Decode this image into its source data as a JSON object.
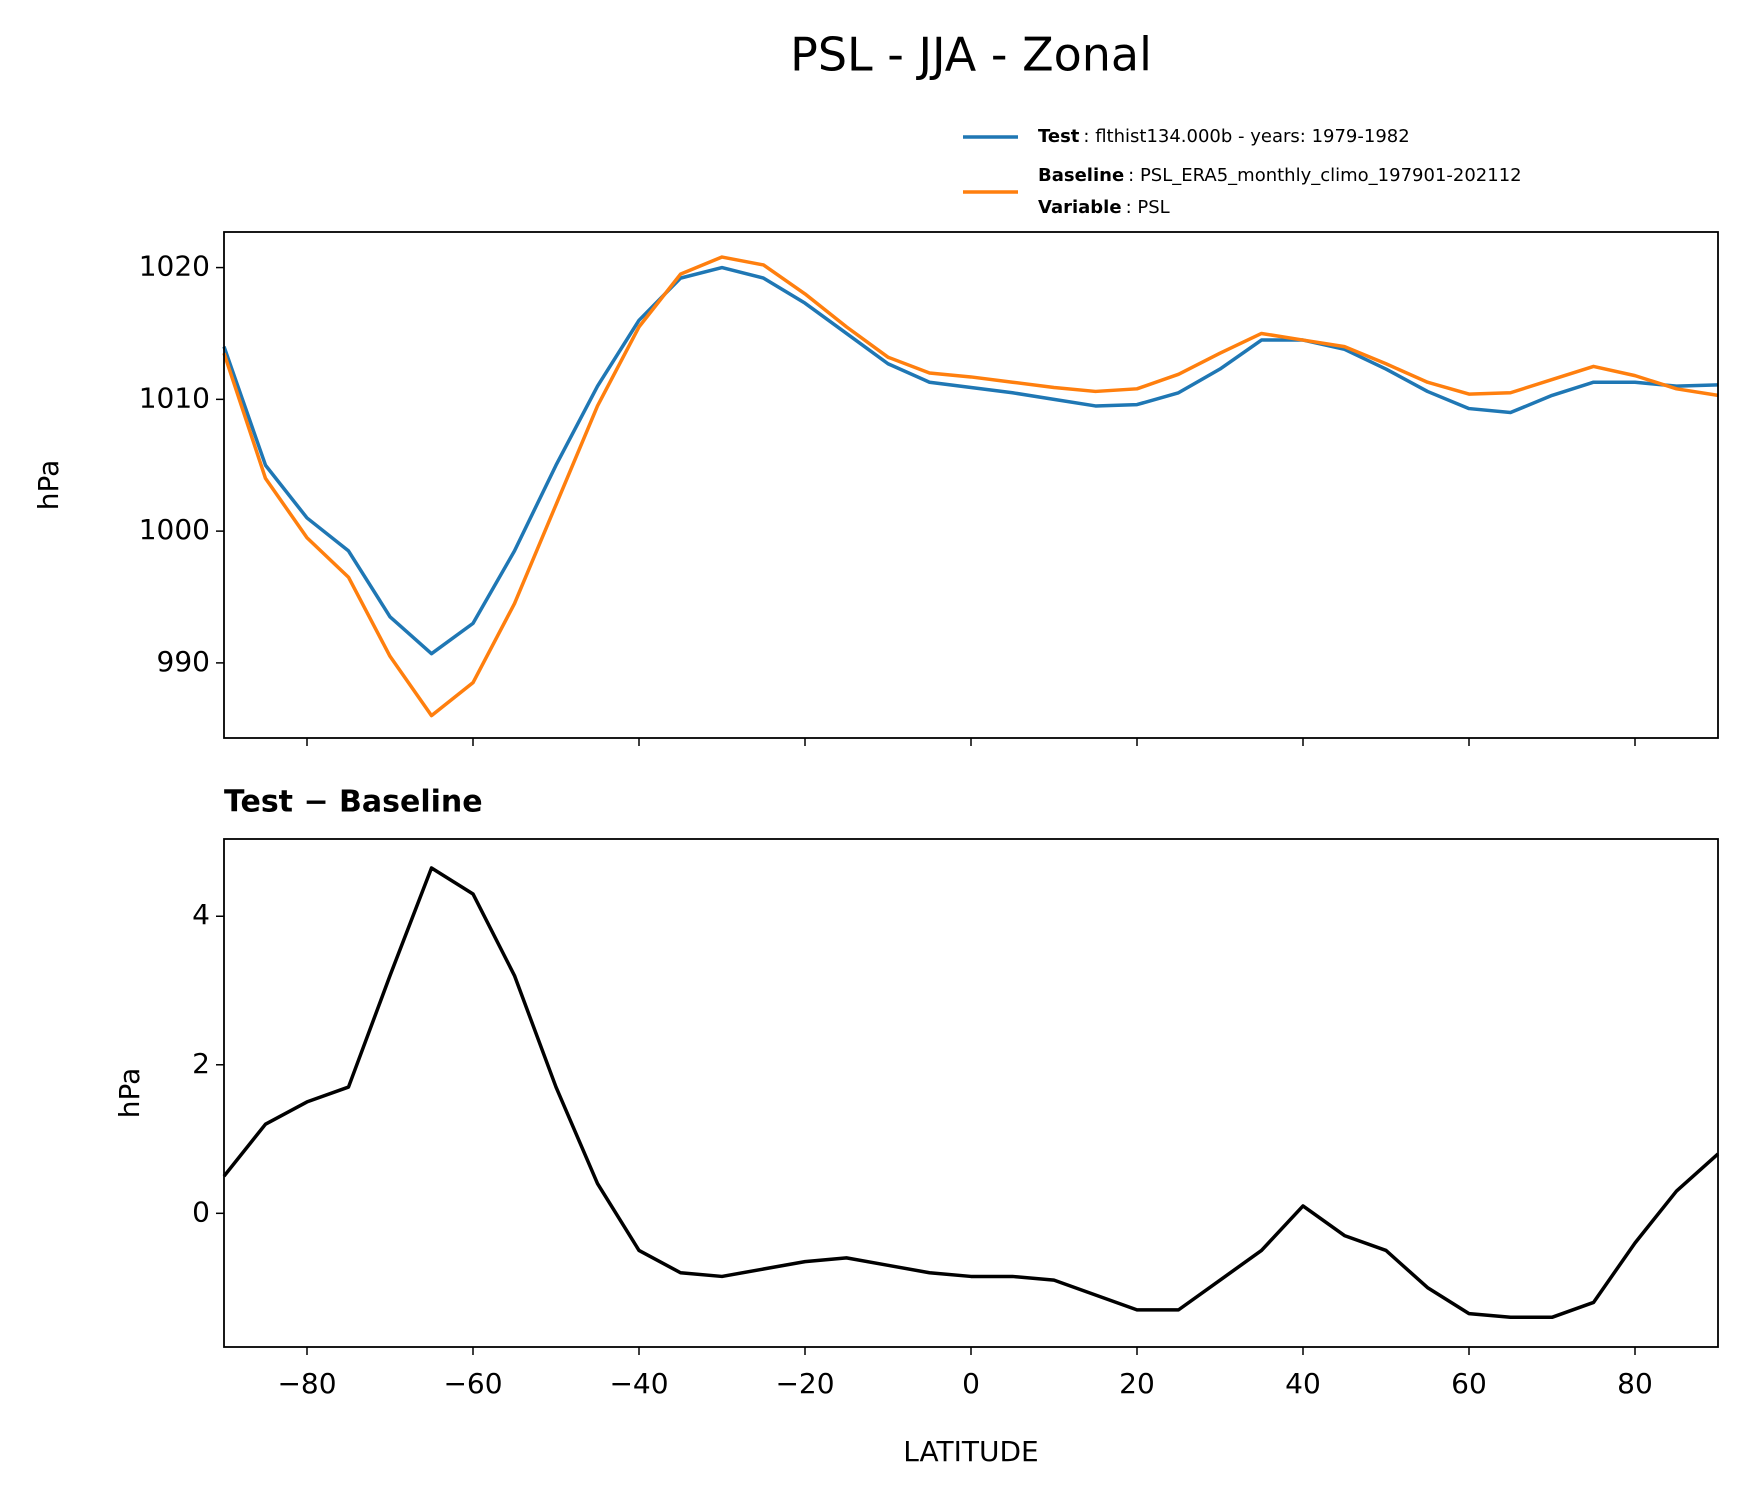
{
  "chart_data": [
    {
      "type": "line",
      "title": "PSL - JJA - Zonal",
      "ylabel": "hPa",
      "x": [
        -90,
        -85,
        -80,
        -75,
        -70,
        -65,
        -60,
        -55,
        -50,
        -45,
        -40,
        -35,
        -30,
        -25,
        -20,
        -15,
        -10,
        -5,
        0,
        5,
        10,
        15,
        20,
        25,
        30,
        35,
        40,
        45,
        50,
        55,
        60,
        65,
        70,
        75,
        80,
        85,
        90
      ],
      "series": [
        {
          "name": "Test",
          "description": ": flthist134.000b - years: 1979-1982",
          "color": "#1f77b4",
          "values": [
            1014,
            1005,
            1001,
            998.5,
            993.5,
            990.7,
            993,
            998.5,
            1005,
            1011,
            1016,
            1019.2,
            1020,
            1019.2,
            1017.3,
            1015,
            1012.7,
            1011.3,
            1010.9,
            1010.5,
            1010,
            1009.5,
            1009.6,
            1010.5,
            1012.3,
            1014.5,
            1014.5,
            1013.8,
            1012.3,
            1010.6,
            1009.3,
            1009,
            1010.3,
            1011.3,
            1011.3,
            1011,
            1011.1
          ]
        },
        {
          "name": "Baseline",
          "description": ": PSL_ERA5_monthly_climo_197901-202112",
          "color": "#ff7f0e",
          "values": [
            1013.5,
            1004,
            999.5,
            996.5,
            990.5,
            986,
            988.5,
            994.5,
            1002,
            1009.5,
            1015.5,
            1019.5,
            1020.8,
            1020.2,
            1018,
            1015.5,
            1013.2,
            1012,
            1011.7,
            1011.3,
            1010.9,
            1010.6,
            1010.8,
            1011.9,
            1013.5,
            1015,
            1014.5,
            1014,
            1012.7,
            1011.3,
            1010.4,
            1010.5,
            1011.5,
            1012.5,
            1011.8,
            1010.8,
            1010.3
          ]
        }
      ],
      "legend_note": {
        "name": "Variable",
        "description": ": PSL"
      },
      "xlim": [
        -90,
        90
      ],
      "xticks": [
        -80,
        -60,
        -40,
        -20,
        0,
        20,
        40,
        60,
        80
      ],
      "ylim": [
        984.3,
        1022.7
      ],
      "yticks": [
        990,
        1000,
        1010,
        1020
      ],
      "grid": false
    },
    {
      "type": "line",
      "title": "Test − Baseline",
      "ylabel": "hPa",
      "xlabel": "LATITUDE",
      "x": [
        -90,
        -85,
        -80,
        -75,
        -70,
        -65,
        -60,
        -55,
        -50,
        -45,
        -40,
        -35,
        -30,
        -25,
        -20,
        -15,
        -10,
        -5,
        0,
        5,
        10,
        15,
        20,
        25,
        30,
        35,
        40,
        45,
        50,
        55,
        60,
        65,
        70,
        75,
        80,
        85,
        90
      ],
      "series": [
        {
          "color": "#000000",
          "values": [
            0.5,
            1.2,
            1.5,
            1.7,
            3.2,
            4.65,
            4.3,
            3.2,
            1.7,
            0.4,
            -0.5,
            -0.8,
            -0.85,
            -0.75,
            -0.65,
            -0.6,
            -0.7,
            -0.8,
            -0.85,
            -0.85,
            -0.9,
            -1.1,
            -1.3,
            -1.3,
            -0.9,
            -0.5,
            0.1,
            -0.3,
            -0.5,
            -1.0,
            -1.35,
            -1.4,
            -1.4,
            -1.2,
            -0.4,
            0.3,
            0.8
          ]
        }
      ],
      "xlim": [
        -90,
        90
      ],
      "xticks": [
        {
          "value": -80,
          "label": "−80"
        },
        {
          "value": -60,
          "label": "−60"
        },
        {
          "value": -40,
          "label": "−40"
        },
        {
          "value": -20,
          "label": "−20"
        },
        0,
        20,
        40,
        60,
        80
      ],
      "ylim": [
        -1.8,
        5.04
      ],
      "yticks": [
        0,
        2,
        4
      ],
      "grid": false
    }
  ]
}
